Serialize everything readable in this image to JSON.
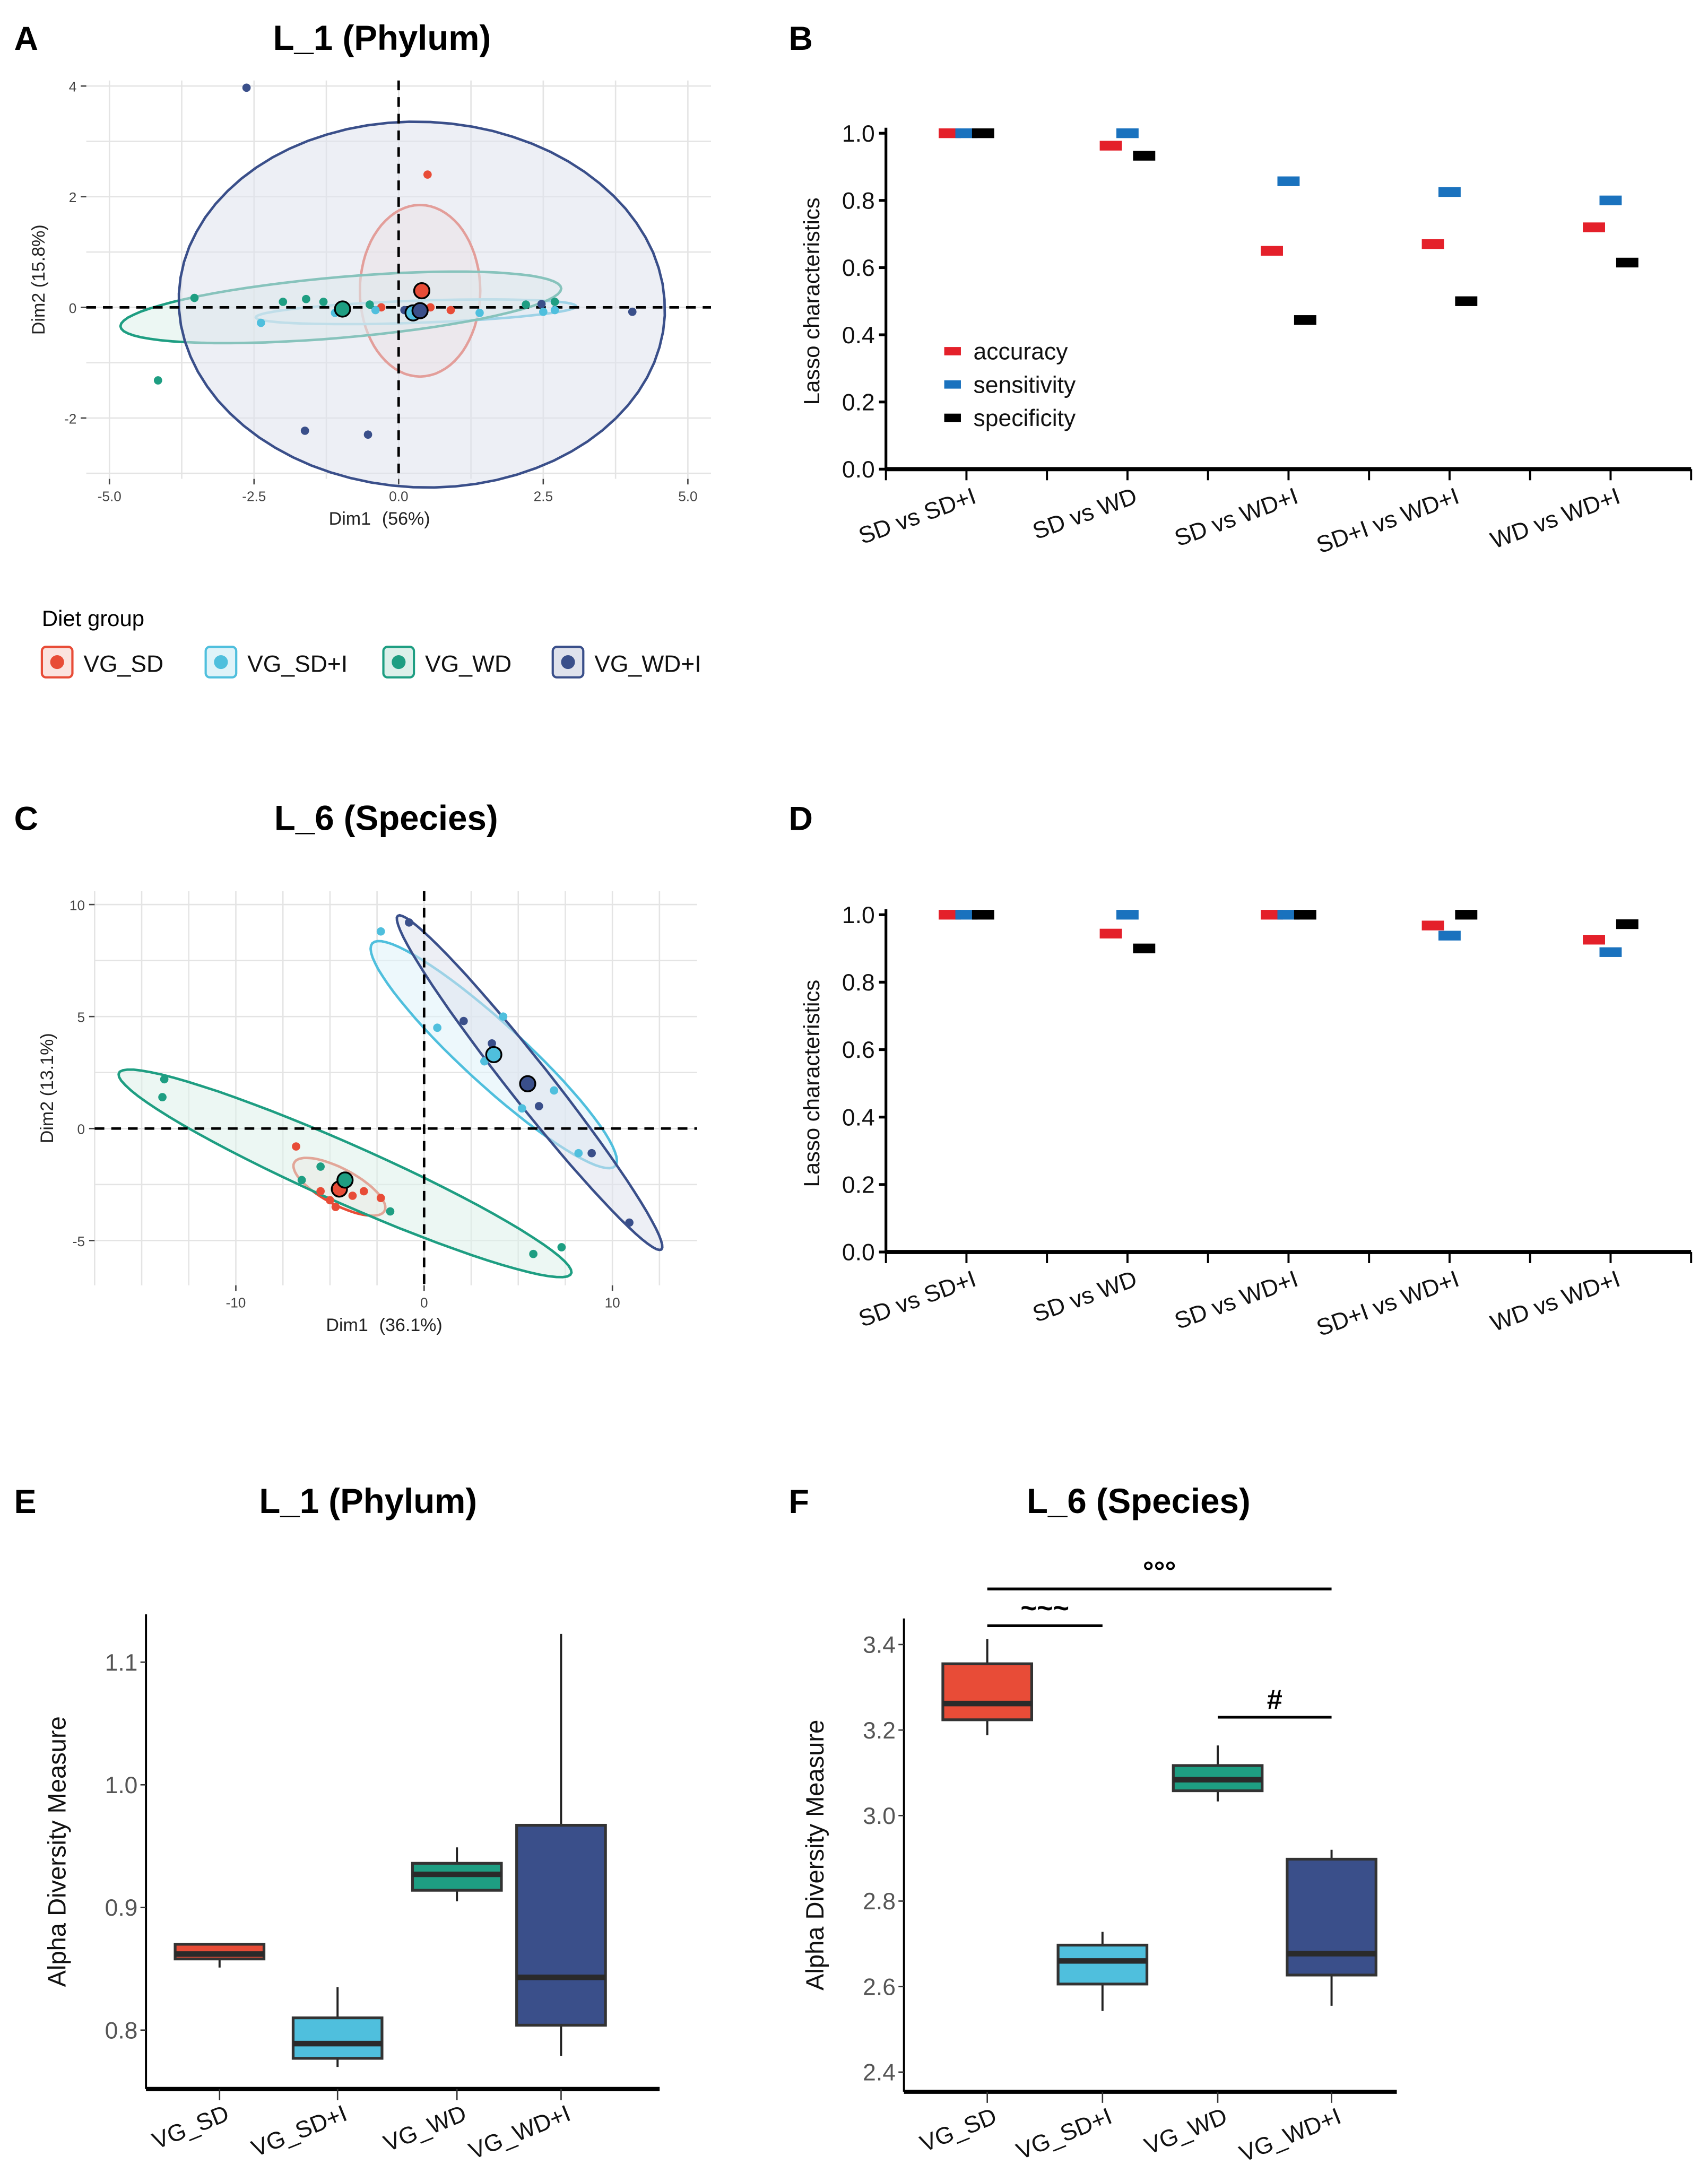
{
  "panels": {
    "A": "A",
    "B": "B",
    "C": "C",
    "D": "D",
    "E": "E",
    "F": "F"
  },
  "titles": {
    "A": "L_1 (Phylum)",
    "C": "L_6 (Species)",
    "E": "L_1 (Phylum)",
    "F": "L_6 (Species)"
  },
  "legend": {
    "title": "Diet group",
    "items": [
      "VG_SD",
      "VG_SD+I",
      "VG_WD",
      "VG_WD+I"
    ]
  },
  "colors": {
    "VG_SD": "#e84c37",
    "VG_SD+I": "#4fbfdd",
    "VG_WD": "#1e9e82",
    "VG_WD+I": "#3a4f8a",
    "accuracy": "#e4202a",
    "sensitivity": "#1a72be",
    "specificity": "#000000"
  },
  "chart_data": [
    {
      "id": "A",
      "type": "scatter",
      "title": "L_1 (Phylum)",
      "xlabel": "Dim1",
      "xlabel_pct": "(56%)",
      "ylabel": "Dim2  (15.8%)",
      "xlim": [
        -5.4,
        5.4
      ],
      "ylim": [
        -3.1,
        4.1
      ],
      "xticks": [
        "-5.0",
        "-2.5",
        "0.0",
        "2.5",
        "5.0"
      ],
      "xtick_vals": [
        -5,
        -2.5,
        0,
        2.5,
        5
      ],
      "yticks": [
        "-2",
        "0",
        "2",
        "4"
      ],
      "ytick_vals": [
        -2,
        0,
        2,
        4
      ],
      "groups": [
        {
          "name": "VG_SD",
          "points": [
            [
              0.5,
              2.4
            ],
            [
              -0.3,
              0
            ],
            [
              0.55,
              0
            ],
            [
              0.9,
              -0.05
            ],
            [
              0.2,
              -0.05
            ]
          ],
          "centroid": [
            0.4,
            0.3
          ],
          "ellipse": {
            "c": [
              0.37,
              0.3
            ],
            "a": [
              1.04,
              0
            ],
            "b": [
              0,
              1.55
            ]
          }
        },
        {
          "name": "VG_SD+I",
          "points": [
            [
              -2.38,
              -0.28
            ],
            [
              -1.1,
              -0.1
            ],
            [
              0.3,
              -0.05
            ],
            [
              1.4,
              -0.1
            ],
            [
              2.5,
              -0.08
            ],
            [
              2.7,
              -0.05
            ],
            [
              -0.4,
              -0.05
            ]
          ],
          "centroid": [
            0.25,
            -0.1
          ],
          "ellipse": {
            "c": [
              0.3,
              -0.08
            ],
            "a": [
              2.77,
              0.1
            ],
            "b": [
              0,
              0.2
            ]
          }
        },
        {
          "name": "VG_WD",
          "points": [
            [
              -4.16,
              -1.32
            ],
            [
              -3.53,
              0.17
            ],
            [
              -2.0,
              0.1
            ],
            [
              -1.6,
              0.15
            ],
            [
              -0.5,
              0.05
            ],
            [
              2.7,
              0.1
            ],
            [
              2.2,
              0.05
            ],
            [
              -1.3,
              0.1
            ]
          ],
          "centroid": [
            -0.97,
            -0.03
          ],
          "ellipse": {
            "c": [
              -1.0,
              0
            ],
            "a": [
              3.81,
              0.34
            ],
            "b": [
              0,
              0.55
            ]
          }
        },
        {
          "name": "VG_WD+I",
          "points": [
            [
              -2.63,
              3.97
            ],
            [
              -1.62,
              -2.23
            ],
            [
              -0.53,
              -2.3
            ],
            [
              4.04,
              -0.08
            ],
            [
              2.47,
              0.06
            ],
            [
              0.1,
              -0.05
            ]
          ],
          "centroid": [
            0.37,
            -0.06
          ],
          "ellipse": {
            "c": [
              0.4,
              0.05
            ],
            "a": [
              4.2,
              -0.2
            ],
            "b": [
              0.15,
              3.3
            ]
          }
        }
      ]
    },
    {
      "id": "B",
      "type": "scatter",
      "ylabel": "Lasso characteristics",
      "ylim": [
        0,
        1
      ],
      "yticks": [
        "0.0",
        "0.2",
        "0.4",
        "0.6",
        "0.8",
        "1.0"
      ],
      "categories": [
        "SD vs SD+I",
        "SD vs WD",
        "SD vs WD+I",
        "SD+I vs WD+I",
        "WD vs WD+I"
      ],
      "series": [
        {
          "name": "accuracy",
          "values": [
            1.0,
            0.963,
            0.65,
            0.67,
            0.72
          ]
        },
        {
          "name": "sensitivity",
          "values": [
            1.0,
            1.0,
            0.857,
            0.825,
            0.8
          ]
        },
        {
          "name": "specificity",
          "values": [
            1.0,
            0.933,
            0.444,
            0.5,
            0.615
          ]
        }
      ],
      "legend": "bottom-left"
    },
    {
      "id": "C",
      "type": "scatter",
      "title": "L_6 (Species)",
      "xlabel": "Dim1",
      "xlabel_pct": "(36.1%)",
      "ylabel": "Dim2 (13.1%)",
      "xlim": [
        -17.5,
        14.5
      ],
      "ylim": [
        -7,
        10.6
      ],
      "xticks": [
        "-10",
        "0",
        "10"
      ],
      "xtick_vals": [
        -10,
        0,
        10
      ],
      "yticks": [
        "-5",
        "0",
        "5",
        "10"
      ],
      "ytick_vals": [
        -5,
        0,
        5,
        10
      ],
      "groups": [
        {
          "name": "VG_SD",
          "points": [
            [
              -6.8,
              -0.8
            ],
            [
              -5.5,
              -2.8
            ],
            [
              -4.7,
              -3.5
            ],
            [
              -3.8,
              -3.0
            ],
            [
              -3.2,
              -2.8
            ],
            [
              -2.3,
              -3.1
            ],
            [
              -5.0,
              -3.2
            ]
          ],
          "centroid": [
            -4.5,
            -2.7
          ],
          "ellipse": {
            "c": [
              -4.5,
              -2.6
            ],
            "a": [
              2.4,
              -0.75
            ],
            "b": [
              -0.44,
              1.05
            ]
          }
        },
        {
          "name": "VG_SD+I",
          "points": [
            [
              -2.3,
              8.8
            ],
            [
              0.7,
              4.5
            ],
            [
              4.2,
              5.0
            ],
            [
              6.9,
              1.7
            ],
            [
              8.2,
              -1.1
            ],
            [
              3.2,
              3.0
            ],
            [
              5.2,
              0.9
            ]
          ],
          "centroid": [
            3.7,
            3.3
          ],
          "ellipse": {
            "c": [
              3.7,
              3.3
            ],
            "a": [
              6.45,
              -4.97
            ],
            "b": [
              -1.08,
              -1.01
            ]
          }
        },
        {
          "name": "VG_WD",
          "points": [
            [
              -13.8,
              2.2
            ],
            [
              -13.9,
              1.4
            ],
            [
              5.8,
              -5.6
            ],
            [
              7.3,
              -5.3
            ],
            [
              -1.8,
              -3.7
            ],
            [
              -6.5,
              -2.3
            ],
            [
              -5.5,
              -1.7
            ]
          ],
          "centroid": [
            -4.2,
            -2.3
          ],
          "ellipse": {
            "c": [
              -4.2,
              -2.0
            ],
            "a": [
              12.0,
              -4.3
            ],
            "b": [
              -0.83,
              1.73
            ]
          }
        },
        {
          "name": "VG_WD+I",
          "points": [
            [
              -0.8,
              9.2
            ],
            [
              2.1,
              4.8
            ],
            [
              3.6,
              3.8
            ],
            [
              6.1,
              1.0
            ],
            [
              8.9,
              -1.1
            ],
            [
              10.9,
              -4.2
            ]
          ],
          "centroid": [
            5.5,
            2.0
          ],
          "ellipse": {
            "c": [
              5.6,
              2.05
            ],
            "a": [
              7.0,
              -7.45
            ],
            "b": [
              -0.86,
              -0.58
            ]
          }
        }
      ]
    },
    {
      "id": "D",
      "type": "scatter",
      "ylabel": "Lasso characteristics",
      "ylim": [
        0,
        1
      ],
      "yticks": [
        "0.0",
        "0.2",
        "0.4",
        "0.6",
        "0.8",
        "1.0"
      ],
      "categories": [
        "SD vs SD+I",
        "SD vs WD",
        "SD vs WD+I",
        "SD+I vs WD+I",
        "WD vs WD+I"
      ],
      "series": [
        {
          "name": "accuracy",
          "values": [
            1.0,
            0.944,
            1.0,
            0.968,
            0.926
          ]
        },
        {
          "name": "sensitivity",
          "values": [
            1.0,
            1.0,
            1.0,
            0.938,
            0.889
          ]
        },
        {
          "name": "specificity",
          "values": [
            1.0,
            0.9,
            1.0,
            1.0,
            0.972
          ]
        }
      ]
    },
    {
      "id": "E",
      "type": "box",
      "title": "L_1 (Phylum)",
      "ylabel": "Alpha Diversity Measure",
      "ylim": [
        0.752,
        1.139
      ],
      "yticks": [
        "0.8",
        "0.9",
        "1.0",
        "1.1"
      ],
      "ytick_vals": [
        0.8,
        0.9,
        1.0,
        1.1
      ],
      "categories": [
        "VG_SD",
        "VG_SD+I",
        "VG_WD",
        "VG_WD+I"
      ],
      "boxes": [
        {
          "min": 0.851,
          "q1": 0.858,
          "median": 0.862,
          "q3": 0.87,
          "max": 0.87
        },
        {
          "min": 0.77,
          "q1": 0.777,
          "median": 0.789,
          "q3": 0.81,
          "max": 0.835
        },
        {
          "min": 0.905,
          "q1": 0.914,
          "median": 0.927,
          "q3": 0.936,
          "max": 0.949
        },
        {
          "min": 0.779,
          "q1": 0.804,
          "median": 0.843,
          "q3": 0.967,
          "max": 1.123
        }
      ]
    },
    {
      "id": "F",
      "type": "box",
      "title": "L_6 (Species)",
      "ylabel": "Alpha Diversity Measure",
      "ylim": [
        2.354,
        3.461
      ],
      "yticks": [
        "2.4",
        "2.6",
        "2.8",
        "3.0",
        "3.2",
        "3.4"
      ],
      "ytick_vals": [
        2.4,
        2.6,
        2.8,
        3.0,
        3.2,
        3.4
      ],
      "categories": [
        "VG_SD",
        "VG_SD+I",
        "VG_WD",
        "VG_WD+I"
      ],
      "boxes": [
        {
          "min": 3.188,
          "q1": 3.224,
          "median": 3.262,
          "q3": 3.355,
          "max": 3.413
        },
        {
          "min": 2.543,
          "q1": 2.606,
          "median": 2.66,
          "q3": 2.697,
          "max": 2.728
        },
        {
          "min": 3.033,
          "q1": 3.058,
          "median": 3.084,
          "q3": 3.117,
          "max": 3.164
        },
        {
          "min": 2.555,
          "q1": 2.627,
          "median": 2.677,
          "q3": 2.898,
          "max": 2.92
        }
      ],
      "annotations": [
        {
          "from": "VG_SD",
          "to": "VG_WD+I",
          "label": "°°°",
          "y": 3.53
        },
        {
          "from": "VG_SD",
          "to": "VG_SD+I",
          "label": "~~~",
          "y": 3.444
        },
        {
          "from": "VG_WD",
          "to": "VG_WD+I",
          "label": "#",
          "y": 3.23
        }
      ]
    }
  ]
}
